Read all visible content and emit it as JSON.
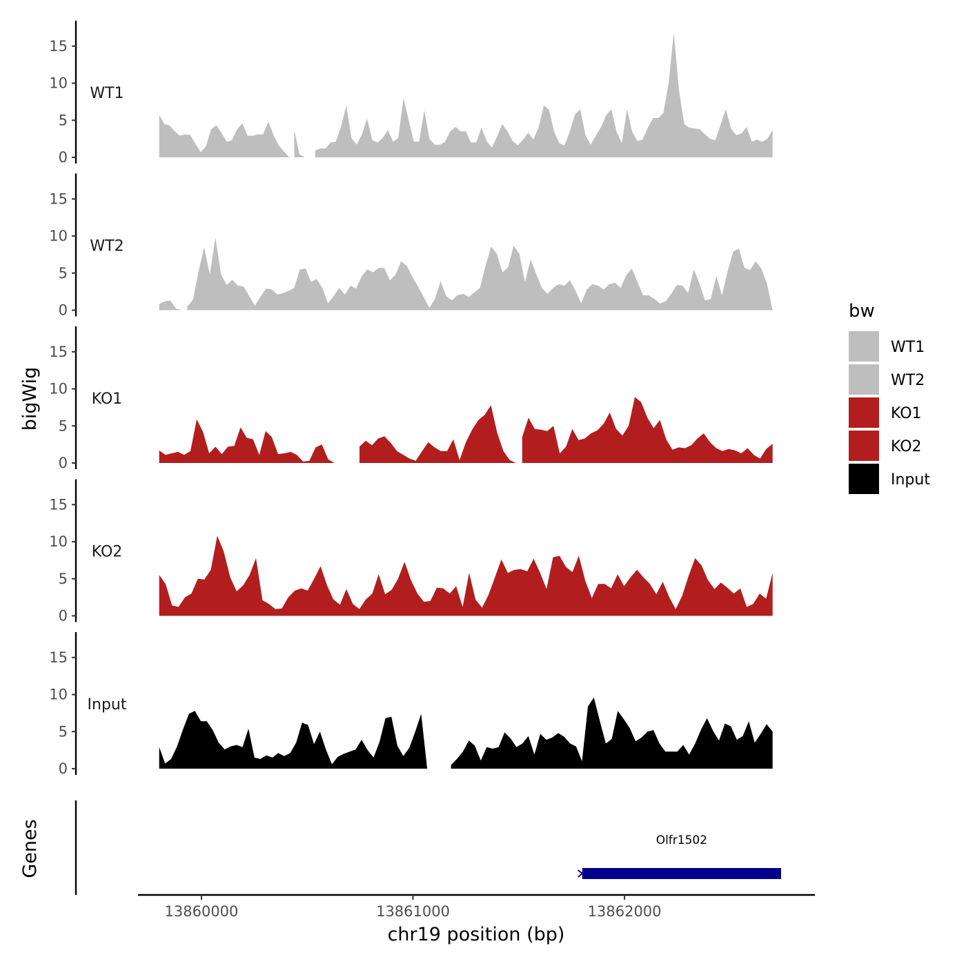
{
  "chart_data": {
    "type": "area",
    "ylabel": "bigWig",
    "xlabel": "chr19 position (bp)",
    "xlim": [
      13859700,
      13862900
    ],
    "data_range": [
      13859800,
      13862700
    ],
    "x_ticks": [
      13860000,
      13861000,
      13862000
    ],
    "x_tick_labels": [
      "13860000",
      "13861000",
      "13862000"
    ],
    "ylim": [
      0,
      17.5
    ],
    "y_ticks": [
      0,
      5,
      10,
      15
    ],
    "y_tick_labels": [
      "0",
      "5",
      "10",
      "15"
    ],
    "tracks": [
      {
        "name": "WT1",
        "color": "#bebebe",
        "values": [
          5.7,
          4.5,
          4.3,
          3.5,
          2.9,
          3.1,
          3.0,
          1.8,
          0.7,
          1.5,
          3.8,
          4.3,
          3.3,
          2.1,
          2.3,
          3.8,
          4.6,
          2.9,
          2.9,
          3.1,
          3.1,
          4.8,
          3.0,
          1.6,
          0.8,
          0.0,
          3.7,
          0.4,
          0.0,
          0.0,
          0.9,
          1.2,
          1.2,
          2.0,
          2.1,
          4.2,
          7.0,
          2.6,
          1.7,
          3.1,
          5.2,
          2.3,
          2.0,
          2.6,
          3.7,
          2.1,
          2.6,
          8.0,
          5.0,
          2.1,
          2.1,
          6.3,
          2.5,
          1.7,
          1.7,
          2.1,
          3.5,
          4.1,
          3.5,
          3.5,
          2.0,
          2.0,
          4.0,
          2.2,
          1.3,
          2.8,
          4.5,
          3.5,
          2.2,
          1.6,
          2.4,
          3.3,
          2.4,
          4.1,
          7.0,
          6.4,
          3.4,
          1.9,
          1.6,
          3.5,
          5.8,
          6.5,
          3.0,
          1.7,
          2.9,
          4.1,
          5.7,
          6.5,
          3.4,
          1.9,
          6.5,
          3.4,
          2.2,
          2.4,
          4.0,
          5.3,
          5.3,
          6.0,
          10.0,
          16.8,
          9.0,
          4.5,
          4.0,
          3.9,
          3.8,
          3.1,
          2.5,
          2.3,
          4.4,
          6.5,
          3.9,
          3.0,
          3.2,
          4.1,
          2.1,
          2.4,
          2.1,
          2.5,
          3.7
        ]
      },
      {
        "name": "WT2",
        "color": "#bebebe",
        "values": [
          0.8,
          1.2,
          1.3,
          0.2,
          0.0,
          0.5,
          1.4,
          5.2,
          8.5,
          4.8,
          9.8,
          4.8,
          3.4,
          4.1,
          3.3,
          3.2,
          1.9,
          0.6,
          1.8,
          2.9,
          2.8,
          2.1,
          2.3,
          2.6,
          3.0,
          5.5,
          5.6,
          3.8,
          4.2,
          3.0,
          0.9,
          1.9,
          3.0,
          2.1,
          3.3,
          2.9,
          4.6,
          5.5,
          5.1,
          5.7,
          5.7,
          4.0,
          4.8,
          6.6,
          6.0,
          4.5,
          3.2,
          1.8,
          0.3,
          1.5,
          3.9,
          1.9,
          1.3,
          2.0,
          2.2,
          1.8,
          2.4,
          3.0,
          6.0,
          8.6,
          7.6,
          5.1,
          5.8,
          8.7,
          7.6,
          3.8,
          6.8,
          4.9,
          3.0,
          2.2,
          3.0,
          3.5,
          3.3,
          4.0,
          2.6,
          0.9,
          2.8,
          3.5,
          3.3,
          2.8,
          3.5,
          3.7,
          3.0,
          4.7,
          5.6,
          3.8,
          2.0,
          2.0,
          1.5,
          0.9,
          1.2,
          2.2,
          3.4,
          3.3,
          2.3,
          5.5,
          3.6,
          1.3,
          1.5,
          4.6,
          2.0,
          5.2,
          7.9,
          8.3,
          5.7,
          5.4,
          6.6,
          5.6,
          3.6,
          0.0
        ]
      },
      {
        "name": "KO1",
        "color": "#b21e1e",
        "values": [
          1.7,
          1.1,
          1.3,
          1.5,
          1.1,
          1.6,
          5.9,
          4.2,
          1.3,
          2.2,
          1.2,
          2.2,
          2.3,
          4.8,
          3.4,
          3.2,
          1.1,
          4.3,
          3.5,
          1.2,
          1.3,
          1.5,
          1.1,
          0.2,
          0.3,
          2.1,
          2.5,
          0.5,
          0.0,
          0.0,
          0.0,
          0.0,
          2.2,
          3.0,
          2.4,
          3.3,
          3.6,
          2.7,
          1.6,
          1.1,
          0.6,
          0.3,
          1.6,
          2.8,
          2.1,
          1.6,
          1.6,
          3.2,
          0.4,
          2.8,
          4.5,
          5.8,
          6.5,
          7.8,
          4.1,
          1.6,
          0.4,
          0.0,
          3.5,
          6.1,
          4.6,
          4.5,
          4.3,
          5.0,
          1.3,
          2.2,
          4.6,
          3.1,
          3.3,
          4.0,
          4.4,
          5.3,
          6.8,
          4.6,
          3.7,
          5.0,
          8.9,
          8.2,
          6.1,
          4.7,
          5.8,
          3.2,
          1.8,
          2.1,
          2.0,
          2.4,
          3.3,
          4.0,
          2.8,
          2.0,
          1.6,
          1.9,
          1.7,
          1.3,
          2.0,
          1.1,
          0.6,
          1.9,
          2.6
        ]
      },
      {
        "name": "KO2",
        "color": "#b21e1e",
        "values": [
          5.5,
          4.3,
          1.4,
          1.2,
          2.5,
          3.0,
          5.0,
          4.9,
          6.2,
          10.8,
          8.7,
          5.2,
          3.3,
          4.1,
          5.5,
          7.8,
          2.1,
          1.6,
          0.9,
          1.0,
          2.5,
          3.4,
          3.7,
          3.4,
          5.0,
          6.7,
          4.1,
          2.2,
          1.5,
          3.6,
          1.6,
          0.9,
          2.2,
          3.0,
          5.6,
          2.9,
          3.5,
          5.0,
          7.3,
          4.8,
          3.0,
          1.9,
          2.0,
          3.8,
          3.7,
          3.0,
          4.0,
          1.2,
          5.8,
          2.2,
          1.1,
          2.8,
          5.2,
          7.6,
          5.8,
          6.2,
          6.3,
          6.0,
          7.7,
          5.8,
          3.6,
          7.9,
          8.1,
          6.6,
          5.9,
          8.1,
          4.7,
          2.4,
          4.3,
          4.3,
          3.7,
          5.6,
          4.0,
          5.2,
          6.2,
          5.2,
          4.3,
          2.9,
          4.6,
          2.5,
          0.9,
          2.7,
          5.4,
          7.8,
          6.8,
          4.8,
          3.6,
          4.5,
          3.8,
          3.0,
          3.7,
          1.2,
          1.6,
          3.0,
          2.3,
          5.8
        ]
      },
      {
        "name": "Input",
        "color": "#000000",
        "values": [
          2.9,
          0.7,
          1.3,
          3.0,
          5.3,
          7.4,
          7.8,
          6.4,
          6.4,
          5.2,
          3.5,
          2.6,
          3.0,
          3.2,
          2.9,
          5.4,
          1.5,
          1.3,
          1.8,
          1.5,
          2.1,
          1.7,
          2.1,
          3.5,
          6.2,
          5.9,
          3.3,
          5.0,
          2.6,
          0.6,
          1.6,
          2.0,
          2.3,
          2.6,
          3.9,
          2.5,
          1.5,
          3.6,
          6.8,
          7.0,
          3.1,
          1.7,
          2.8,
          5.0,
          7.4,
          0.0,
          0.0,
          0.0,
          0.0,
          0.5,
          1.3,
          2.3,
          3.8,
          3.1,
          1.1,
          2.9,
          2.7,
          2.9,
          4.9,
          4.1,
          2.9,
          3.4,
          4.4,
          1.9,
          4.7,
          3.9,
          4.2,
          4.8,
          4.3,
          3.4,
          3.0,
          1.0,
          8.4,
          9.6,
          6.4,
          3.4,
          4.0,
          7.8,
          6.7,
          5.5,
          3.7,
          4.2,
          5.0,
          5.2,
          3.4,
          2.3,
          2.3,
          2.3,
          3.2,
          1.9,
          3.4,
          5.3,
          6.8,
          5.1,
          3.8,
          6.1,
          5.7,
          3.9,
          4.4,
          6.4,
          3.5,
          4.7,
          6.0,
          5.0
        ]
      }
    ],
    "genes_label": "Genes",
    "genes": [
      {
        "name": "Olfr1502",
        "start": 13861800,
        "end": 13862740,
        "color": "#00008b"
      }
    ],
    "legend": {
      "title": "bw",
      "position": "right",
      "entries": [
        {
          "label": "WT1",
          "color": "#bebebe"
        },
        {
          "label": "WT2",
          "color": "#bebebe"
        },
        {
          "label": "KO1",
          "color": "#b21e1e"
        },
        {
          "label": "KO2",
          "color": "#b21e1e"
        },
        {
          "label": "Input",
          "color": "#000000"
        }
      ]
    }
  }
}
